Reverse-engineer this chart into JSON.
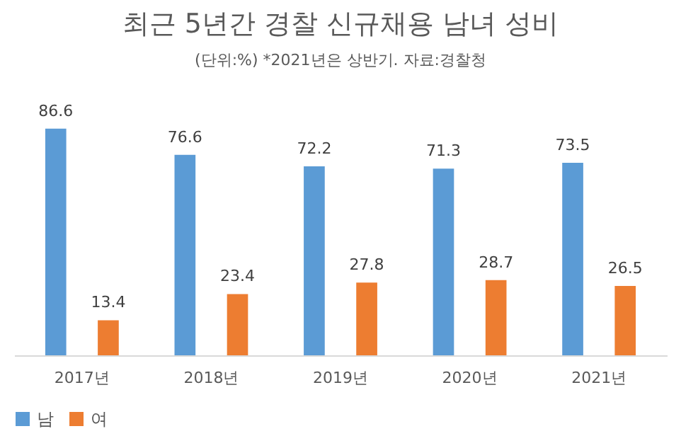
{
  "chart_data": {
    "type": "bar",
    "title": "최근 5년간 경찰 신규채용 남녀 성비",
    "subtitle": "(단위:%)   *2021년은 상반기.  자료:경찰청",
    "categories": [
      "2017년",
      "2018년",
      "2019년",
      "2020년",
      "2021년"
    ],
    "series": [
      {
        "name": "남",
        "color": "#5b9bd5",
        "values": [
          86.6,
          76.6,
          72.2,
          71.3,
          73.5
        ]
      },
      {
        "name": "여",
        "color": "#ed7d31",
        "values": [
          13.4,
          23.4,
          27.8,
          28.7,
          26.5
        ]
      }
    ],
    "data_labels": true,
    "legend": "bottom"
  }
}
